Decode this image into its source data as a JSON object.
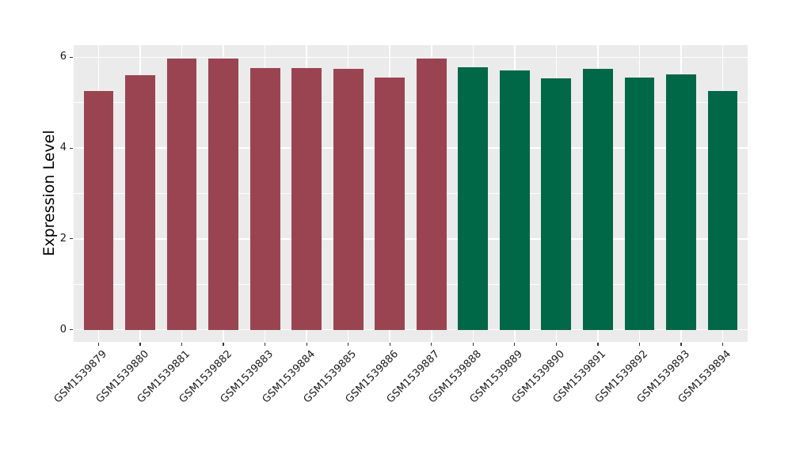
{
  "figure": {
    "background": "#FFFFFF",
    "panel_background": "#EBEBEB",
    "grid_color": "#FFFFFF",
    "axis_text_color": "#1A1A1A",
    "tick_mark_color": "#333333"
  },
  "chart_data": {
    "type": "bar",
    "title": "",
    "xlabel": "",
    "ylabel": "Expression Level",
    "categories": [
      "GSM1539879",
      "GSM1539880",
      "GSM1539881",
      "GSM1539882",
      "GSM1539883",
      "GSM1539884",
      "GSM1539885",
      "GSM1539886",
      "GSM1539887",
      "GSM1539888",
      "GSM1539889",
      "GSM1539890",
      "GSM1539891",
      "GSM1539892",
      "GSM1539893",
      "GSM1539894"
    ],
    "values": [
      5.26,
      5.61,
      5.98,
      5.98,
      5.77,
      5.77,
      5.75,
      5.55,
      5.97,
      5.79,
      5.72,
      5.54,
      5.75,
      5.56,
      5.63,
      5.26
    ],
    "bar_colors": [
      "#9A4452",
      "#9A4452",
      "#9A4452",
      "#9A4452",
      "#9A4452",
      "#9A4452",
      "#9A4452",
      "#9A4452",
      "#9A4452",
      "#006747",
      "#006747",
      "#006747",
      "#006747",
      "#006747",
      "#006747",
      "#006747"
    ],
    "ylim": [
      -0.27,
      6.27
    ],
    "yticks": [
      0,
      2,
      4,
      6
    ],
    "yticks_minor": [
      1,
      3,
      5
    ],
    "x_tick_rotation_deg": 45,
    "grid": "on",
    "legend_position": "none",
    "bar_width_fraction": 0.72
  }
}
